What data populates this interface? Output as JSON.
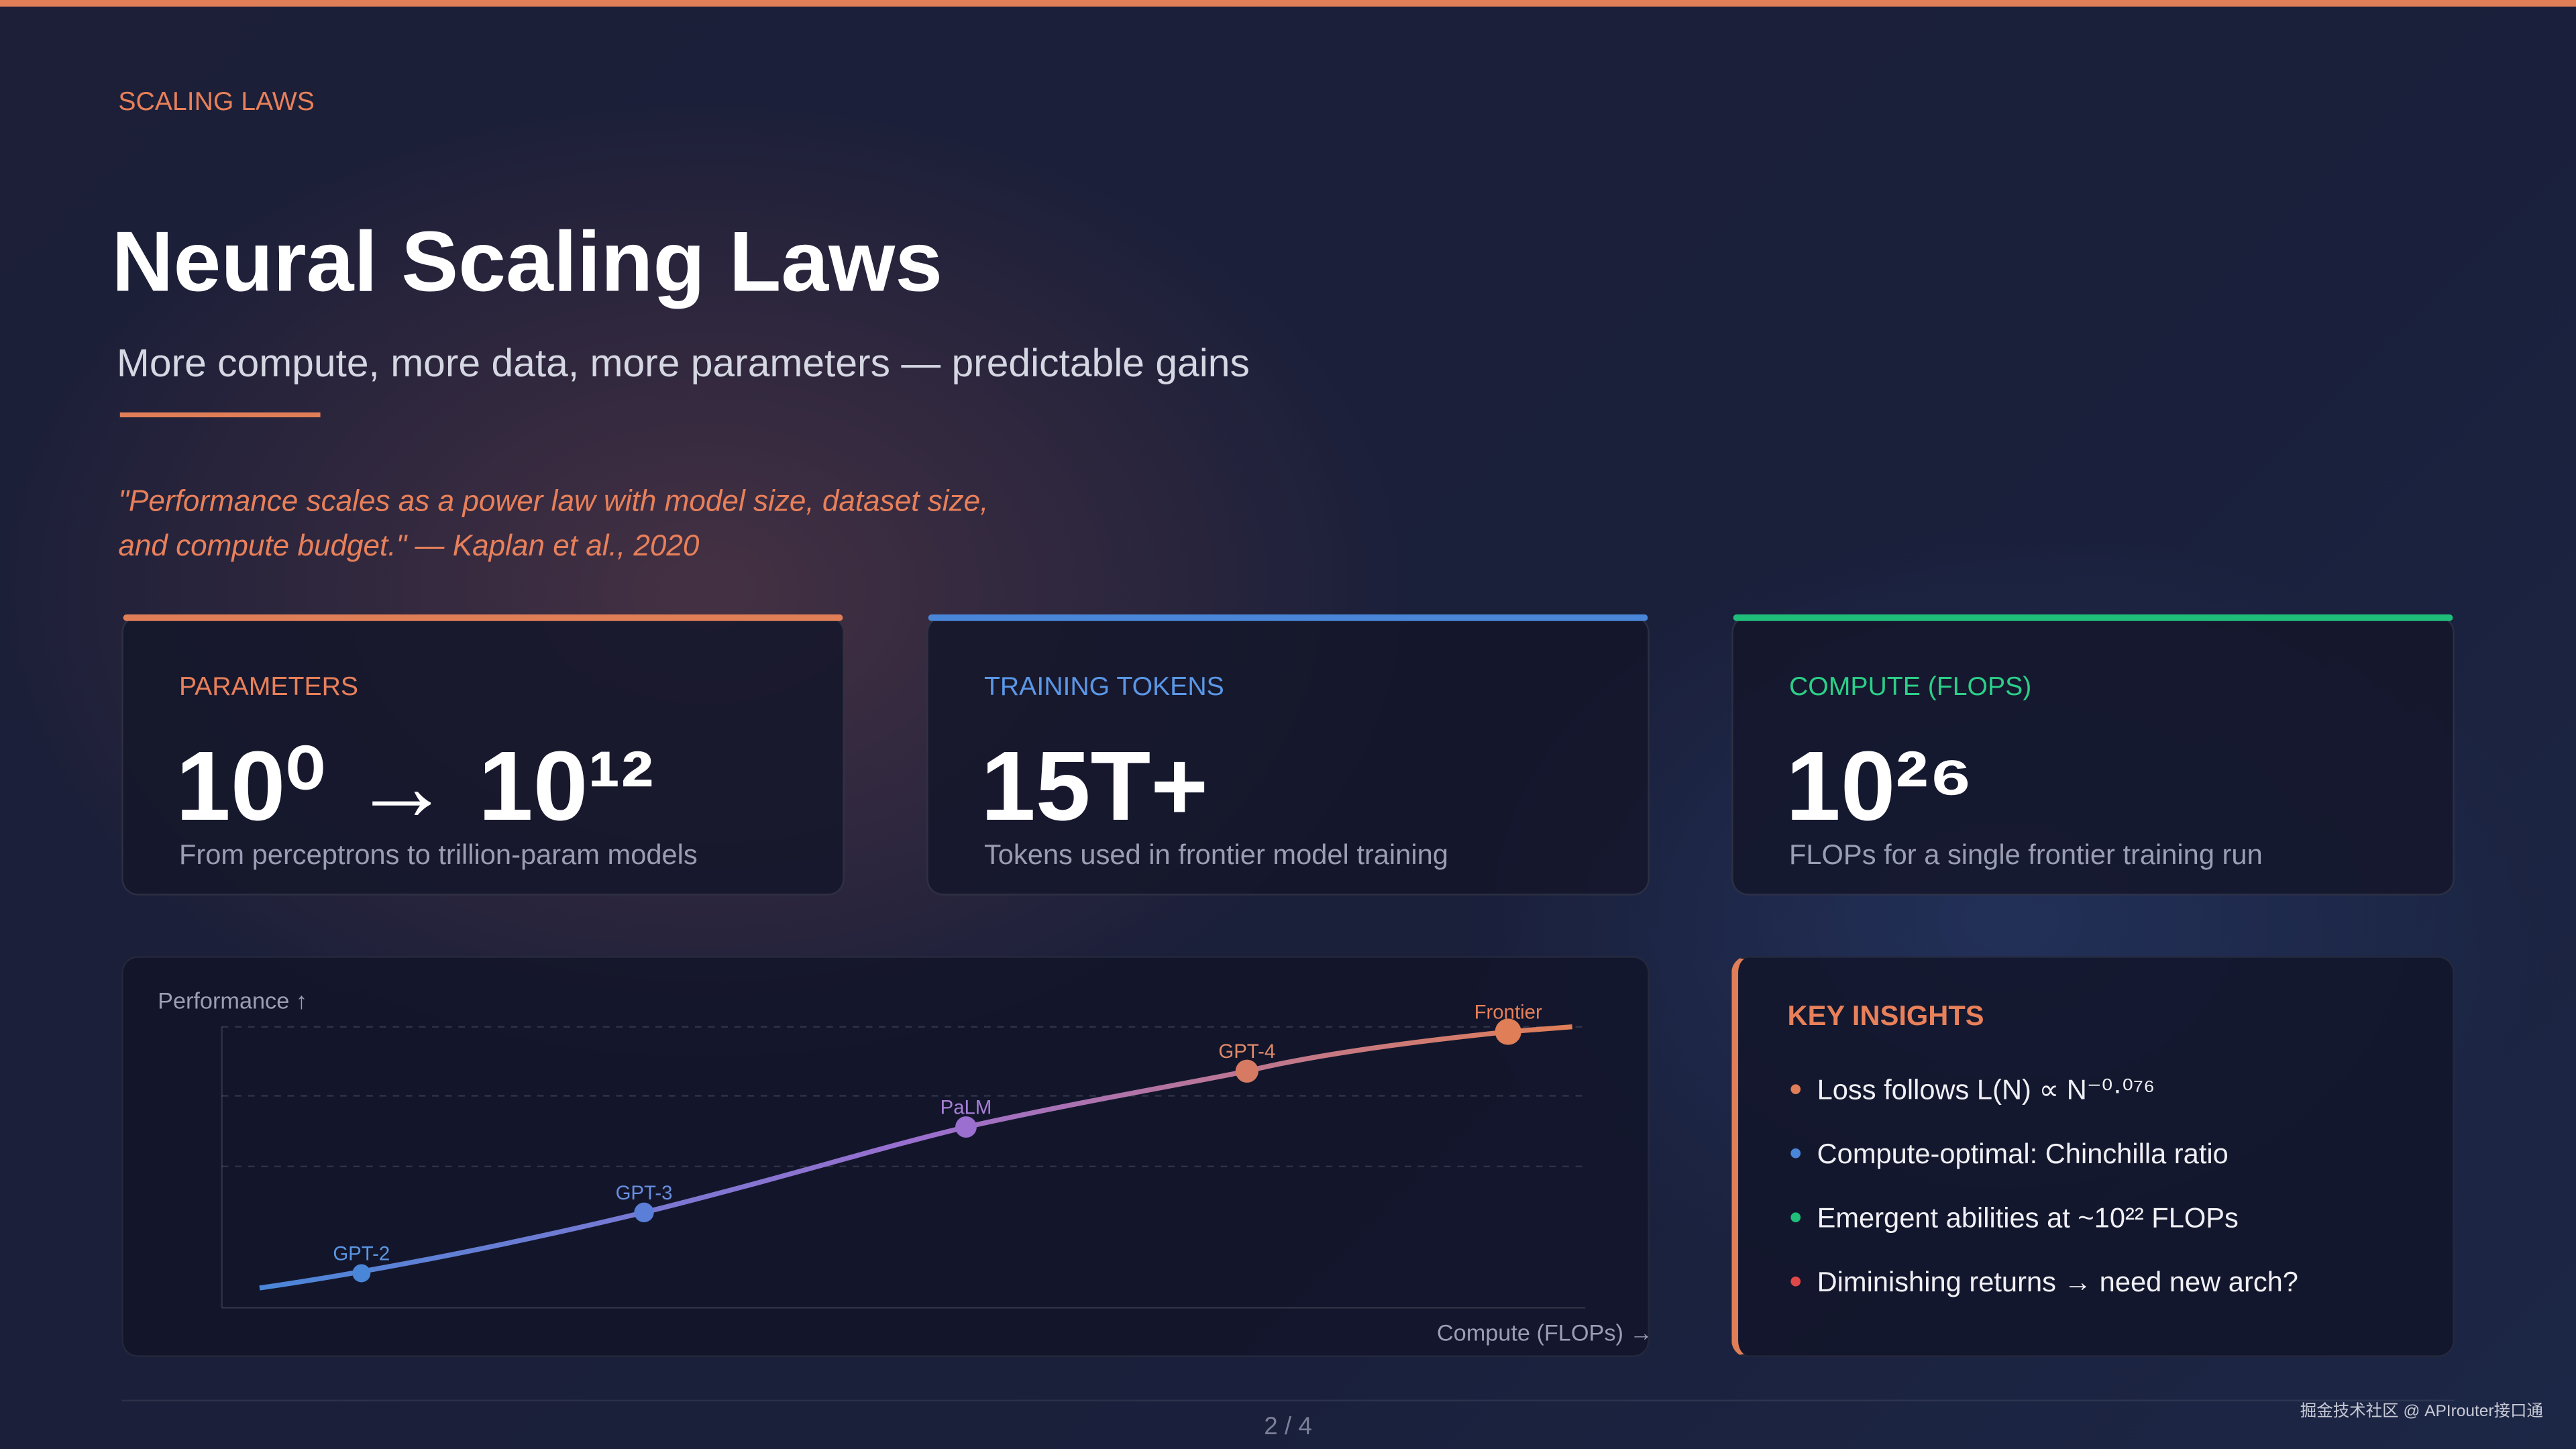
{
  "header": {
    "eyebrow": "SCALING LAWS",
    "title": "Neural Scaling Laws",
    "subtitle": "More compute, more data, more parameters — predictable gains"
  },
  "quote": {
    "lines": [
      "\"Performance scales as a power law with model size, dataset size,",
      "and compute budget.\" — Kaplan et al., 2020"
    ]
  },
  "cards": [
    {
      "label": "PARAMETERS",
      "value": "10⁰ → 10¹²",
      "caption": "From perceptrons to trillion-param models"
    },
    {
      "label": "TRAINING TOKENS",
      "value": "15T+",
      "caption": "Tokens used in frontier model training"
    },
    {
      "label": "COMPUTE (FLOPS)",
      "value": "10²⁶",
      "caption": "FLOPs for a single frontier training run"
    }
  ],
  "chart": {
    "y_label": "Performance ↑",
    "x_label": "Compute (FLOPs) →",
    "points": [
      "GPT-2",
      "GPT-3",
      "PaLM",
      "GPT-4",
      "Frontier"
    ]
  },
  "insights": {
    "title": "KEY INSIGHTS",
    "items": [
      "Loss follows L(N) ∝ N⁻⁰·⁰⁷⁶",
      "Compute-optimal: Chinchilla ratio",
      "Emergent abilities at ~10²² FLOPs",
      "Diminishing returns → need new arch?"
    ]
  },
  "footer": {
    "page": "2 / 4",
    "watermark": "掘金技术社区 @ APIrouter接口通"
  }
}
